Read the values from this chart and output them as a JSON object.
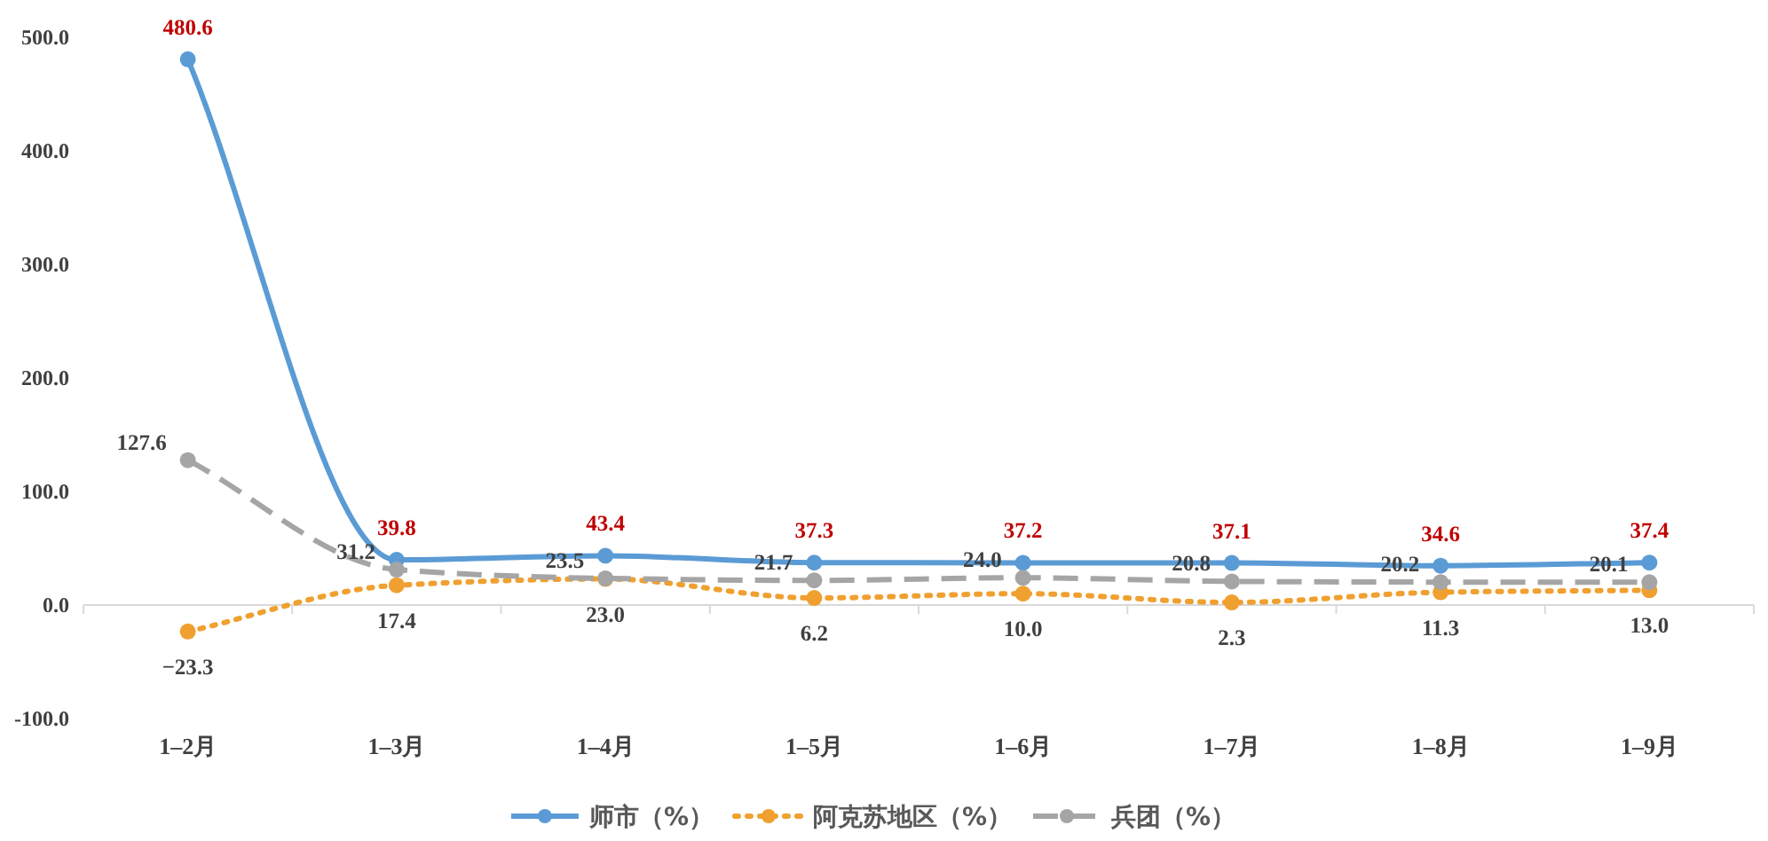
{
  "chart_data": {
    "type": "line",
    "categories": [
      "1–2月",
      "1–3月",
      "1–4月",
      "1–5月",
      "1–6月",
      "1–7月",
      "1–8月",
      "1–9月"
    ],
    "series": [
      {
        "name": "师市（%）",
        "color": "#5b9bd5",
        "line_style": "solid",
        "values": [
          480.6,
          39.8,
          43.4,
          37.3,
          37.2,
          37.1,
          34.6,
          37.4
        ],
        "value_labels": [
          "480.6",
          "39.8",
          "43.4",
          "37.3",
          "37.2",
          "37.1",
          "34.6",
          "37.4"
        ]
      },
      {
        "name": "阿克苏地区（%）",
        "color": "#f0a030",
        "line_style": "dotted",
        "values": [
          -23.3,
          17.4,
          23.0,
          6.2,
          10.0,
          2.3,
          11.3,
          13.0
        ],
        "value_labels": [
          "−23.3",
          "17.4",
          "23.0",
          "6.2",
          "10.0",
          "2.3",
          "11.3",
          "13.0"
        ]
      },
      {
        "name": "兵团（%）",
        "color": "#a5a5a5",
        "line_style": "dashed",
        "values": [
          127.6,
          31.2,
          23.5,
          21.7,
          24.0,
          20.8,
          20.2,
          20.1
        ],
        "value_labels": [
          "127.6",
          "31.2",
          "23.5",
          "21.7",
          "24.0",
          "20.8",
          "20.2",
          "20.1"
        ]
      }
    ],
    "ylim": [
      -100,
      500
    ],
    "yticks": [
      {
        "value": -100,
        "label": "-100.0"
      },
      {
        "value": 0,
        "label": "0.0"
      },
      {
        "value": 100,
        "label": "100.0"
      },
      {
        "value": 200,
        "label": "200.0"
      },
      {
        "value": 300,
        "label": "300.0"
      },
      {
        "value": 400,
        "label": "400.0"
      },
      {
        "value": 500,
        "label": "500.0"
      }
    ],
    "marker": "circle",
    "legend": "bottom"
  }
}
